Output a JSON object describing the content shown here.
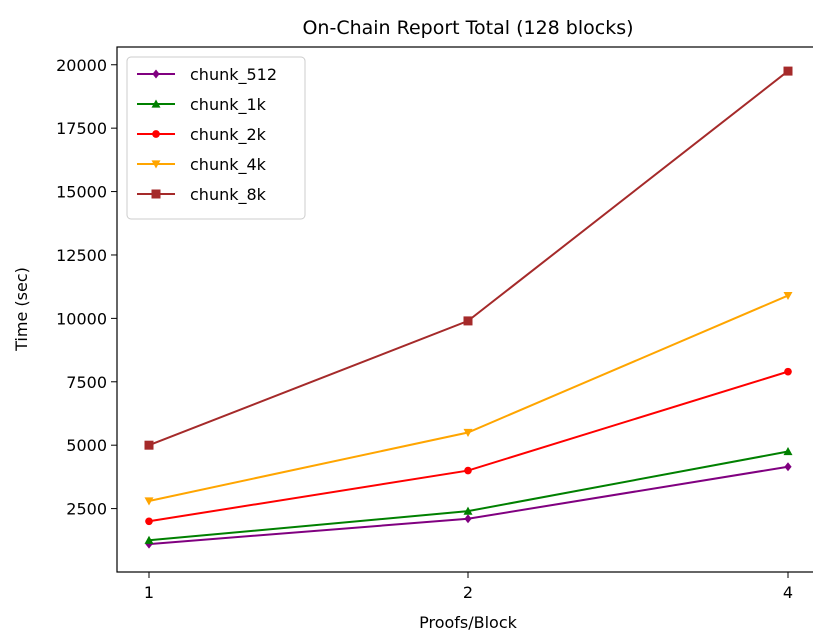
{
  "chart_data": {
    "type": "line",
    "title": "On-Chain Report Total (128 blocks)",
    "xlabel": "Proofs/Block",
    "ylabel": "Time (sec)",
    "x": [
      1,
      2,
      4
    ],
    "x_ticks": [
      "1",
      "2",
      "4"
    ],
    "y_ticks": [
      "2500",
      "5000",
      "7500",
      "10000",
      "12500",
      "15000",
      "17500",
      "20000"
    ],
    "ylim": [
      0,
      20700
    ],
    "legend_position": "upper-left",
    "grid": false,
    "series": [
      {
        "name": "chunk_512",
        "color": "#800080",
        "marker": "diamond",
        "values": [
          1100,
          2100,
          4150
        ]
      },
      {
        "name": "chunk_1k",
        "color": "#008000",
        "marker": "triangle-up",
        "values": [
          1250,
          2400,
          4750
        ]
      },
      {
        "name": "chunk_2k",
        "color": "#ff0000",
        "marker": "circle",
        "values": [
          2000,
          4000,
          7900
        ]
      },
      {
        "name": "chunk_4k",
        "color": "#ffa500",
        "marker": "triangle-down",
        "values": [
          2800,
          5500,
          10900
        ]
      },
      {
        "name": "chunk_8k",
        "color": "#a52a2a",
        "marker": "square",
        "values": [
          5000,
          9900,
          19750
        ]
      }
    ]
  }
}
